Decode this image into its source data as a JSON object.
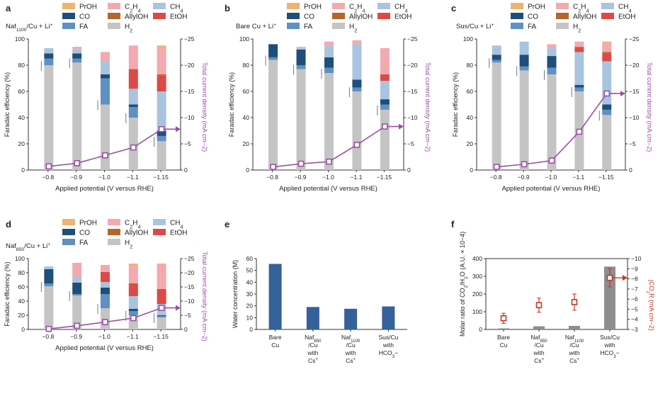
{
  "colors": {
    "PrOH": "#f0b370",
    "C2H4": "#f4a9ae",
    "CH4": "#a9c4df",
    "CO": "#1f4e7a",
    "AllylOH": "#b5662a",
    "EtOH": "#dc4a47",
    "FA": "#5f90c2",
    "H2": "#c4c4c4",
    "current": "#9b4fa5",
    "bar_dark": "#34619a",
    "bar_grey": "#8e8e8e",
    "co2": "#c0392b"
  },
  "legend": {
    "PrOH": "PrOH",
    "C2H4": "C2H4",
    "CH4": "CH4",
    "CO": "CO",
    "AllylOH": "AllylOH",
    "EtOH": "EtOH",
    "FA": "FA",
    "H2": "H2"
  },
  "chart_data": [
    {
      "panel": "a",
      "type": "bar",
      "title": "Naf1100/Cu + Li+",
      "xlabel": "Applied potential (V versus RHE)",
      "ylabel": "Faradaic efficiency (%)",
      "y2label": "Total current density (mA cm−2)",
      "categories": [
        "−0.8",
        "−0.9",
        "−1.0",
        "−1.1",
        "−1.15"
      ],
      "ylim": [
        0,
        100
      ],
      "y2lim": [
        0,
        -25
      ],
      "yticks": [
        "0",
        "20",
        "40",
        "60",
        "80",
        "100"
      ],
      "y2ticks": [
        "0",
        "−5",
        "−10",
        "−15",
        "−20",
        "−25"
      ],
      "stack_order": [
        "H2",
        "FA",
        "CO",
        "CH4",
        "EtOH",
        "AllylOH",
        "C2H4",
        "PrOH"
      ],
      "series": [
        {
          "name": "H2",
          "values": [
            80,
            82,
            50,
            40,
            22
          ]
        },
        {
          "name": "FA",
          "values": [
            5,
            3,
            20,
            8,
            4
          ]
        },
        {
          "name": "CO",
          "values": [
            4,
            4,
            3,
            2,
            4
          ]
        },
        {
          "name": "CH4",
          "values": [
            4,
            3,
            10,
            12,
            30
          ]
        },
        {
          "name": "EtOH",
          "values": [
            0,
            0,
            0,
            15,
            12
          ]
        },
        {
          "name": "AllylOH",
          "values": [
            0,
            0,
            0,
            0,
            1
          ]
        },
        {
          "name": "C2H4",
          "values": [
            0,
            2,
            7,
            18,
            20
          ]
        },
        {
          "name": "PrOH",
          "values": [
            0,
            0,
            0,
            0,
            2
          ]
        }
      ],
      "current": [
        -0.7,
        -1.3,
        -2.8,
        -4.3,
        -7.8
      ]
    },
    {
      "panel": "b",
      "type": "bar",
      "title": "Bare Cu + Li+",
      "xlabel": "Applied potential (V versus RHE)",
      "ylabel": "Faradaic efficiency (%)",
      "y2label": "Total current density (mA cm−2)",
      "categories": [
        "−0.8",
        "−0.9",
        "−1.0",
        "−1.1",
        "−1.15"
      ],
      "ylim": [
        0,
        100
      ],
      "y2lim": [
        0,
        -25
      ],
      "yticks": [
        "0",
        "20",
        "40",
        "60",
        "80",
        "100"
      ],
      "y2ticks": [
        "0",
        "−5",
        "−10",
        "−15",
        "−20",
        "−25"
      ],
      "stack_order": [
        "H2",
        "FA",
        "CO",
        "CH4",
        "EtOH",
        "AllylOH",
        "C2H4",
        "PrOH"
      ],
      "series": [
        {
          "name": "H2",
          "values": [
            84,
            77,
            74,
            60,
            46
          ]
        },
        {
          "name": "FA",
          "values": [
            2,
            3,
            4,
            3,
            4
          ]
        },
        {
          "name": "CO",
          "values": [
            10,
            12,
            8,
            6,
            4
          ]
        },
        {
          "name": "CH4",
          "values": [
            0,
            1,
            9,
            27,
            14
          ]
        },
        {
          "name": "EtOH",
          "values": [
            0,
            0,
            0,
            0,
            5
          ]
        },
        {
          "name": "AllylOH",
          "values": [
            0,
            0,
            0,
            0,
            0
          ]
        },
        {
          "name": "C2H4",
          "values": [
            0,
            1,
            3,
            3,
            20
          ]
        },
        {
          "name": "PrOH",
          "values": [
            0,
            0,
            0,
            0,
            0
          ]
        }
      ],
      "current": [
        -0.6,
        -1.2,
        -1.6,
        -4.8,
        -8.3
      ]
    },
    {
      "panel": "c",
      "type": "bar",
      "title": "Sus/Cu + Li+",
      "xlabel": "Applied potential (V versus RHE)",
      "ylabel": "Faradaic efficiency (%)",
      "y2label": "Total current density (mA cm−2)",
      "categories": [
        "−0.8",
        "−0.9",
        "−1.0",
        "−1.1",
        "−1.15"
      ],
      "ylim": [
        0,
        100
      ],
      "y2lim": [
        0,
        -25
      ],
      "yticks": [
        "0",
        "20",
        "40",
        "60",
        "80",
        "100"
      ],
      "y2ticks": [
        "0",
        "−5",
        "−10",
        "−15",
        "−20",
        "−25"
      ],
      "stack_order": [
        "H2",
        "FA",
        "CO",
        "CH4",
        "EtOH",
        "AllylOH",
        "C2H4",
        "PrOH"
      ],
      "series": [
        {
          "name": "H2",
          "values": [
            82,
            76,
            73,
            60,
            42
          ]
        },
        {
          "name": "FA",
          "values": [
            2,
            3,
            5,
            3,
            4
          ]
        },
        {
          "name": "CO",
          "values": [
            4,
            9,
            9,
            2,
            4
          ]
        },
        {
          "name": "CH4",
          "values": [
            7,
            10,
            6,
            25,
            33
          ]
        },
        {
          "name": "EtOH",
          "values": [
            0,
            0,
            0,
            3,
            6
          ]
        },
        {
          "name": "AllylOH",
          "values": [
            0,
            0,
            0,
            1,
            1
          ]
        },
        {
          "name": "C2H4",
          "values": [
            0,
            0,
            3,
            4,
            7
          ]
        },
        {
          "name": "PrOH",
          "values": [
            0,
            0,
            0,
            0,
            1
          ]
        }
      ],
      "current": [
        -0.6,
        -1.1,
        -1.8,
        -7.3,
        -14.6
      ]
    },
    {
      "panel": "d",
      "type": "bar",
      "title": "Naf850/Cu + Li+",
      "xlabel": "Applied potential (V versus RHE)",
      "ylabel": "Faradaic efficiency (%)",
      "y2label": "Total current density (mA cm−2)",
      "categories": [
        "−0.8",
        "−0.9",
        "−1.0",
        "−1.1",
        "−1.15"
      ],
      "ylim": [
        0,
        100
      ],
      "y2lim": [
        0,
        -25
      ],
      "yticks": [
        "0",
        "20",
        "40",
        "60",
        "80",
        "100"
      ],
      "y2ticks": [
        "0",
        "−5",
        "−10",
        "−15",
        "−20",
        "−25"
      ],
      "stack_order": [
        "H2",
        "FA",
        "CO",
        "CH4",
        "EtOH",
        "AllylOH",
        "C2H4",
        "PrOH"
      ],
      "series": [
        {
          "name": "H2",
          "values": [
            61,
            48,
            30,
            20,
            17
          ]
        },
        {
          "name": "FA",
          "values": [
            4,
            2,
            20,
            6,
            2
          ]
        },
        {
          "name": "CO",
          "values": [
            20,
            16,
            9,
            3,
            1
          ]
        },
        {
          "name": "CH4",
          "values": [
            4,
            9,
            8,
            18,
            16
          ]
        },
        {
          "name": "EtOH",
          "values": [
            0,
            0,
            14,
            17,
            20
          ]
        },
        {
          "name": "AllylOH",
          "values": [
            0,
            0,
            0,
            1,
            1
          ]
        },
        {
          "name": "C2H4",
          "values": [
            0,
            19,
            10,
            26,
            35
          ]
        },
        {
          "name": "PrOH",
          "values": [
            0,
            0,
            0,
            2,
            1
          ]
        }
      ],
      "current": [
        -0.2,
        -1.3,
        -2.6,
        -4.0,
        -7.6
      ]
    },
    {
      "panel": "e",
      "type": "bar",
      "ylabel": "Water concentration (M)",
      "categories": [
        "Bare Cu",
        "Naf850 /Cu with Cs+",
        "Naf1100 /Cu with Cs+",
        "Sus/Cu with HCO3−"
      ],
      "values": [
        55.5,
        19.0,
        17.5,
        19.5
      ],
      "ylim": [
        0,
        60
      ],
      "yticks": [
        "0",
        "10",
        "20",
        "30",
        "40",
        "50",
        "60"
      ]
    },
    {
      "panel": "f",
      "type": "bar",
      "ylabel": "Molar ratio of CO2/H2O (A.U. × 10−4)",
      "y2label": "jCO2R (mA cm−2)",
      "categories": [
        "Bare Cu",
        "Naf850 /Cu with Cs+",
        "Naf1100 /Cu with Cs+",
        "Sus/Cu with HCO3−"
      ],
      "values": [
        6,
        18,
        20,
        355
      ],
      "current": [
        -4.1,
        -5.4,
        -5.7,
        -8.1
      ],
      "current_err": [
        0.5,
        0.7,
        0.8,
        0.9
      ],
      "ylim": [
        0,
        400
      ],
      "y2lim": [
        -3,
        -10
      ],
      "yticks": [
        "0",
        "100",
        "200",
        "300",
        "400"
      ],
      "y2ticks": [
        "−3",
        "−4",
        "−5",
        "−6",
        "−7",
        "−8",
        "−9",
        "−10"
      ]
    }
  ]
}
